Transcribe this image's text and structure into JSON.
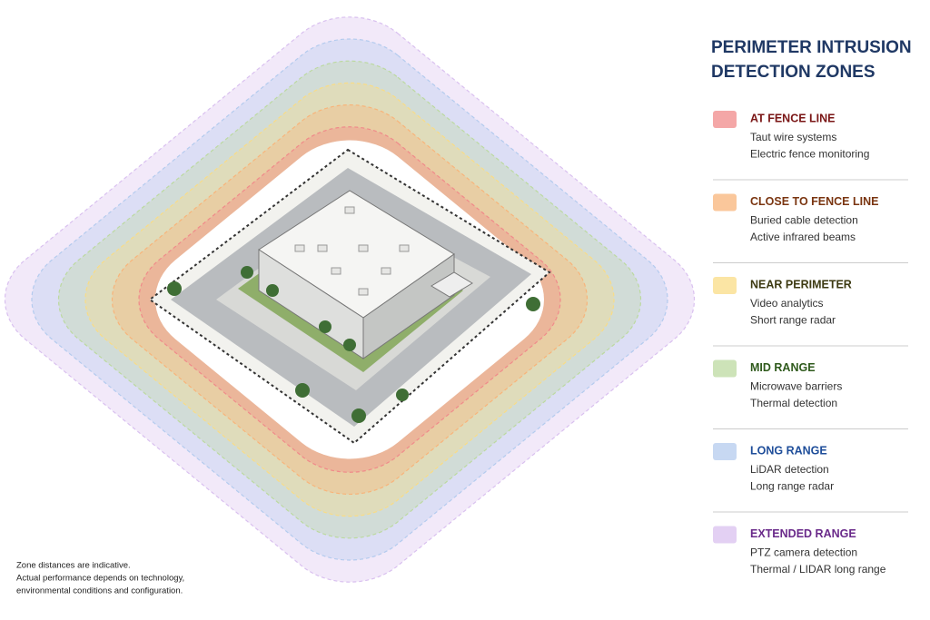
{
  "title": [
    "PERIMETER INTRUSION",
    "DETECTION ZONES"
  ],
  "zones": [
    {
      "name": "AT FENCE LINE",
      "color": "#f08a8a",
      "items": [
        "Taut wire systems",
        "Electric fence monitoring"
      ]
    },
    {
      "name": "CLOSE TO FENCE LINE",
      "color": "#f8b47a",
      "items": [
        "Buried cable detection",
        "Active infrared beams"
      ]
    },
    {
      "name": "NEAR PERIMETER",
      "color": "#f9dc86",
      "items": [
        "Video analytics",
        "Short range radar"
      ]
    },
    {
      "name": "MID RANGE",
      "color": "#bcd9a0",
      "items": [
        "Microwave barriers",
        "Thermal detection"
      ]
    },
    {
      "name": "LONG RANGE",
      "color": "#b4cbee",
      "items": [
        "LiDAR detection",
        "Long range radar"
      ]
    },
    {
      "name": "EXTENDED RANGE",
      "color": "#d9c0ef",
      "items": [
        "PTZ camera detection",
        "Thermal / LIDAR long range"
      ]
    }
  ],
  "footnote": [
    "Zone distances are indicative.",
    "Actual performance depends on technology,",
    "environmental conditions and configuration."
  ]
}
